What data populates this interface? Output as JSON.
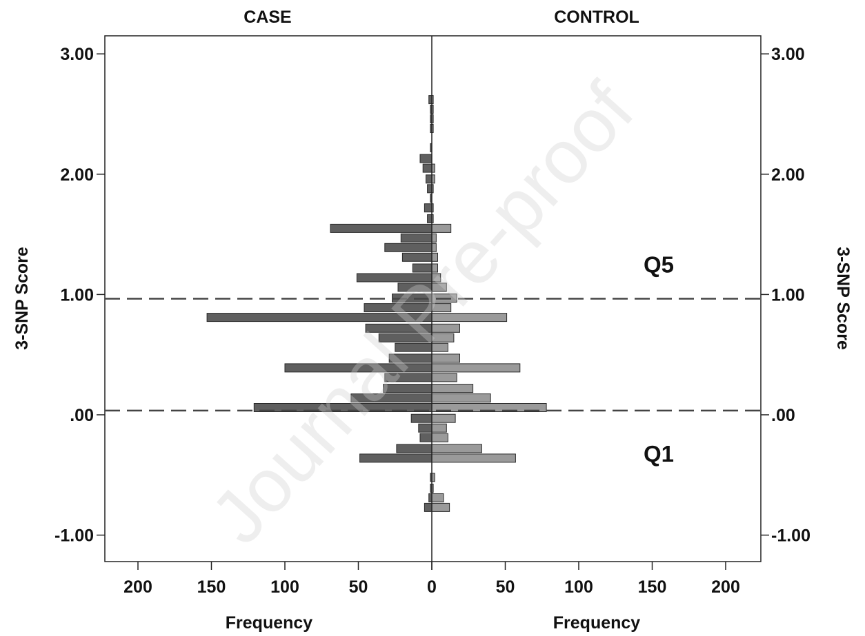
{
  "chart_data": {
    "type": "bar",
    "orientation": "horizontal-mirrored",
    "left_panel_label": "CASE",
    "right_panel_label": "CONTROL",
    "ylabel_left": "3-SNP Score",
    "ylabel_right": "3-SNP Score",
    "xlabel_left": "Frequency",
    "xlabel_right": "Frequency",
    "ylim": [
      -1.22,
      3.15
    ],
    "xlim": [
      0,
      220
    ],
    "y_ticks": [
      3.0,
      2.0,
      1.0,
      0.0,
      -1.0
    ],
    "y_tick_labels": [
      "3.00",
      "2.00",
      "1.00",
      ".00",
      "-1.00"
    ],
    "x_tick_labels": [
      "200",
      "150",
      "100",
      "50",
      "0",
      "0",
      "50",
      "100",
      "150",
      "200"
    ],
    "x_tick_values_left": [
      200,
      150,
      100,
      50,
      0
    ],
    "x_tick_values_right": [
      0,
      50,
      100,
      150,
      200
    ],
    "bin_width": 0.08,
    "case_color": "#5f5f5f",
    "control_color": "#9a9a9a",
    "bar_border_color": "#2a2a2a",
    "dashed_lines": [
      0.965,
      0.035
    ],
    "region_labels": [
      {
        "text": "Q5",
        "y": 1.25
      },
      {
        "text": "Q1",
        "y": -0.32
      }
    ],
    "watermark": "Journal Pre-proof",
    "series": [
      {
        "name": "CASE",
        "bins": [
          {
            "y": 2.62,
            "value": 2
          },
          {
            "y": 2.54,
            "value": 1
          },
          {
            "y": 2.46,
            "value": 1
          },
          {
            "y": 2.38,
            "value": 1
          },
          {
            "y": 2.22,
            "value": 1
          },
          {
            "y": 2.13,
            "value": 8
          },
          {
            "y": 2.05,
            "value": 6
          },
          {
            "y": 1.96,
            "value": 4
          },
          {
            "y": 1.88,
            "value": 3
          },
          {
            "y": 1.8,
            "value": 1
          },
          {
            "y": 1.72,
            "value": 5
          },
          {
            "y": 1.63,
            "value": 3
          },
          {
            "y": 1.55,
            "value": 69
          },
          {
            "y": 1.47,
            "value": 21
          },
          {
            "y": 1.39,
            "value": 32
          },
          {
            "y": 1.31,
            "value": 20
          },
          {
            "y": 1.22,
            "value": 13
          },
          {
            "y": 1.14,
            "value": 51
          },
          {
            "y": 1.06,
            "value": 23
          },
          {
            "y": 0.97,
            "value": 27
          },
          {
            "y": 0.89,
            "value": 46
          },
          {
            "y": 0.81,
            "value": 153
          },
          {
            "y": 0.72,
            "value": 45
          },
          {
            "y": 0.64,
            "value": 36
          },
          {
            "y": 0.56,
            "value": 25
          },
          {
            "y": 0.47,
            "value": 29
          },
          {
            "y": 0.39,
            "value": 100
          },
          {
            "y": 0.31,
            "value": 32
          },
          {
            "y": 0.22,
            "value": 33
          },
          {
            "y": 0.14,
            "value": 55
          },
          {
            "y": 0.06,
            "value": 121
          },
          {
            "y": -0.03,
            "value": 14
          },
          {
            "y": -0.11,
            "value": 9
          },
          {
            "y": -0.19,
            "value": 8
          },
          {
            "y": -0.28,
            "value": 24
          },
          {
            "y": -0.36,
            "value": 49
          },
          {
            "y": -0.52,
            "value": 1
          },
          {
            "y": -0.61,
            "value": 1
          },
          {
            "y": -0.69,
            "value": 2
          },
          {
            "y": -0.77,
            "value": 5
          }
        ]
      },
      {
        "name": "CONTROL",
        "bins": [
          {
            "y": 2.62,
            "value": 1
          },
          {
            "y": 2.54,
            "value": 1
          },
          {
            "y": 2.46,
            "value": 1
          },
          {
            "y": 2.38,
            "value": 1
          },
          {
            "y": 2.05,
            "value": 2
          },
          {
            "y": 1.96,
            "value": 2
          },
          {
            "y": 1.88,
            "value": 1
          },
          {
            "y": 1.72,
            "value": 1
          },
          {
            "y": 1.63,
            "value": 1
          },
          {
            "y": 1.55,
            "value": 13
          },
          {
            "y": 1.47,
            "value": 3
          },
          {
            "y": 1.39,
            "value": 3
          },
          {
            "y": 1.31,
            "value": 4
          },
          {
            "y": 1.22,
            "value": 4
          },
          {
            "y": 1.14,
            "value": 6
          },
          {
            "y": 1.06,
            "value": 10
          },
          {
            "y": 0.97,
            "value": 17
          },
          {
            "y": 0.89,
            "value": 13
          },
          {
            "y": 0.81,
            "value": 51
          },
          {
            "y": 0.72,
            "value": 19
          },
          {
            "y": 0.64,
            "value": 15
          },
          {
            "y": 0.56,
            "value": 11
          },
          {
            "y": 0.47,
            "value": 19
          },
          {
            "y": 0.39,
            "value": 60
          },
          {
            "y": 0.31,
            "value": 17
          },
          {
            "y": 0.22,
            "value": 28
          },
          {
            "y": 0.14,
            "value": 40
          },
          {
            "y": 0.06,
            "value": 78
          },
          {
            "y": -0.03,
            "value": 16
          },
          {
            "y": -0.11,
            "value": 10
          },
          {
            "y": -0.19,
            "value": 11
          },
          {
            "y": -0.28,
            "value": 34
          },
          {
            "y": -0.36,
            "value": 57
          },
          {
            "y": -0.52,
            "value": 2
          },
          {
            "y": -0.61,
            "value": 1
          },
          {
            "y": -0.69,
            "value": 8
          },
          {
            "y": -0.77,
            "value": 12
          }
        ]
      }
    ]
  }
}
